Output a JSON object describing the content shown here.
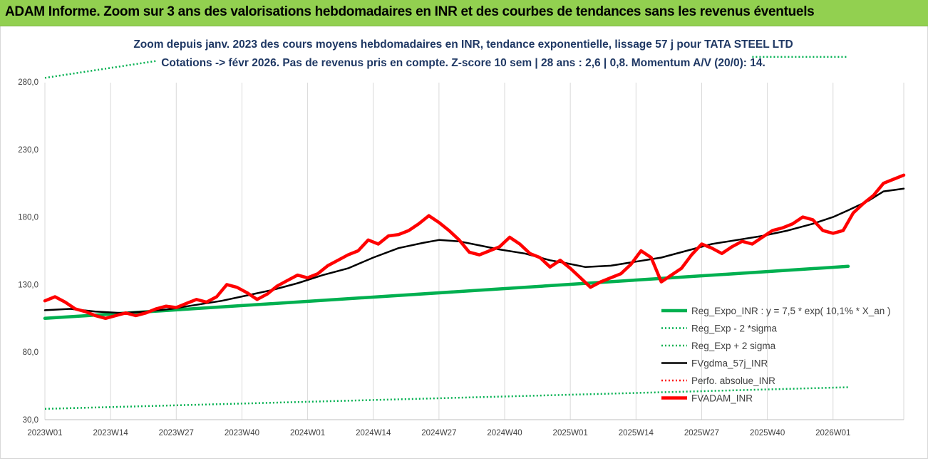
{
  "banner": {
    "title": "ADAM Informe. Zoom sur 3 ans des valorisations hebdomadaires en INR et des courbes de tendances sans les revenus éventuels"
  },
  "chart_data": {
    "type": "line",
    "title": "Zoom depuis janv. 2023 des cours moyens hebdomadaires en INR, tendance exponentielle, lissage 57 j pour TATA STEEL LTD",
    "subtitle": "Cotations -> févr 2026. Pas de revenus pris en compte. Z-score 10 sem | 28 ans : 2,6 | 0,8. Momentum A/V (20/0): 14.",
    "xlabel": "",
    "ylabel": "",
    "ylim": [
      30,
      290
    ],
    "yticks": [
      "30,0",
      "80,0",
      "130,0",
      "180,0",
      "230,0",
      "280,0"
    ],
    "ytick_values": [
      30,
      80,
      130,
      180,
      230,
      280
    ],
    "x_count": 160,
    "xtick_labels": [
      "2023W01",
      "2023W14",
      "2023W27",
      "2023W40",
      "2024W01",
      "2024W14",
      "2024W27",
      "2024W40",
      "2025W01",
      "2025W14",
      "2025W27",
      "2025W40",
      "2026W01"
    ],
    "xtick_index": [
      0,
      13,
      26,
      39,
      52,
      65,
      78,
      91,
      104,
      117,
      130,
      143,
      156
    ],
    "grid": "vertical",
    "legend_position": "right",
    "series": [
      {
        "name": "Reg_Expo_INR : y = 7,5 * exp( 10,1% *  X_an )",
        "style": "solid-thick",
        "color": "#00b050",
        "points": [
          [
            0,
            105.0
          ],
          [
            159,
            143.5
          ]
        ]
      },
      {
        "name": "Reg_Exp - 2 *sigma",
        "style": "dotted",
        "color": "#00b050",
        "points": [
          [
            0,
            38.0
          ],
          [
            159,
            54.0
          ]
        ]
      },
      {
        "name": "Reg_Exp + 2 sigma",
        "style": "dotted",
        "color": "#00b050",
        "points": [
          [
            0,
            283.0
          ],
          [
            22,
            295.5
          ]
        ],
        "points2": [
          [
            140,
            298.5
          ],
          [
            159,
            298.5
          ]
        ]
      },
      {
        "name": "FVgdma_57j_INR",
        "style": "solid",
        "color": "#000000",
        "points": [
          [
            0,
            111
          ],
          [
            5,
            112
          ],
          [
            10,
            110
          ],
          [
            15,
            109
          ],
          [
            20,
            110
          ],
          [
            25,
            112
          ],
          [
            30,
            115
          ],
          [
            35,
            118
          ],
          [
            40,
            122
          ],
          [
            45,
            126
          ],
          [
            50,
            131
          ],
          [
            55,
            137
          ],
          [
            60,
            142
          ],
          [
            65,
            150
          ],
          [
            70,
            157
          ],
          [
            75,
            161
          ],
          [
            78,
            163
          ],
          [
            82,
            162
          ],
          [
            86,
            159
          ],
          [
            90,
            156
          ],
          [
            95,
            153
          ],
          [
            100,
            148
          ],
          [
            103,
            146
          ],
          [
            107,
            143
          ],
          [
            112,
            144
          ],
          [
            117,
            147
          ],
          [
            122,
            150
          ],
          [
            127,
            155
          ],
          [
            132,
            160
          ],
          [
            137,
            163
          ],
          [
            142,
            166
          ],
          [
            147,
            170
          ],
          [
            152,
            175
          ],
          [
            156,
            180
          ],
          [
            159,
            185
          ],
          [
            163,
            192
          ],
          [
            166,
            199
          ],
          [
            170,
            201
          ]
        ]
      },
      {
        "name": "Perfo. absolue_INR",
        "style": "dotted",
        "color": "#ff0000",
        "points": []
      },
      {
        "name": "FVADAM_INR",
        "style": "solid-thick",
        "color": "#ff0000",
        "points": [
          [
            0,
            118
          ],
          [
            2,
            121
          ],
          [
            4,
            117
          ],
          [
            6,
            112
          ],
          [
            8,
            110
          ],
          [
            10,
            107
          ],
          [
            12,
            105
          ],
          [
            14,
            107
          ],
          [
            16,
            109
          ],
          [
            18,
            107
          ],
          [
            20,
            109
          ],
          [
            22,
            112
          ],
          [
            24,
            114
          ],
          [
            26,
            113
          ],
          [
            28,
            116
          ],
          [
            30,
            119
          ],
          [
            32,
            117
          ],
          [
            34,
            121
          ],
          [
            36,
            130
          ],
          [
            38,
            128
          ],
          [
            40,
            124
          ],
          [
            42,
            119
          ],
          [
            44,
            123
          ],
          [
            46,
            129
          ],
          [
            48,
            133
          ],
          [
            50,
            137
          ],
          [
            52,
            135
          ],
          [
            54,
            138
          ],
          [
            56,
            144
          ],
          [
            58,
            148
          ],
          [
            60,
            152
          ],
          [
            62,
            155
          ],
          [
            64,
            163
          ],
          [
            66,
            160
          ],
          [
            68,
            166
          ],
          [
            70,
            167
          ],
          [
            72,
            170
          ],
          [
            74,
            175
          ],
          [
            76,
            181
          ],
          [
            78,
            176
          ],
          [
            80,
            170
          ],
          [
            82,
            163
          ],
          [
            84,
            154
          ],
          [
            86,
            152
          ],
          [
            88,
            155
          ],
          [
            90,
            158
          ],
          [
            92,
            165
          ],
          [
            94,
            160
          ],
          [
            96,
            153
          ],
          [
            98,
            150
          ],
          [
            100,
            143
          ],
          [
            102,
            148
          ],
          [
            104,
            142
          ],
          [
            106,
            135
          ],
          [
            108,
            128
          ],
          [
            110,
            132
          ],
          [
            112,
            135
          ],
          [
            114,
            138
          ],
          [
            116,
            145
          ],
          [
            118,
            155
          ],
          [
            120,
            150
          ],
          [
            122,
            132
          ],
          [
            124,
            137
          ],
          [
            126,
            142
          ],
          [
            128,
            152
          ],
          [
            130,
            160
          ],
          [
            132,
            157
          ],
          [
            134,
            153
          ],
          [
            136,
            158
          ],
          [
            138,
            162
          ],
          [
            140,
            160
          ],
          [
            142,
            165
          ],
          [
            144,
            170
          ],
          [
            146,
            172
          ],
          [
            148,
            175
          ],
          [
            150,
            180
          ],
          [
            152,
            178
          ],
          [
            154,
            170
          ],
          [
            156,
            168
          ],
          [
            158,
            170
          ],
          [
            160,
            183
          ],
          [
            162,
            190
          ],
          [
            164,
            196
          ],
          [
            166,
            205
          ],
          [
            168,
            208
          ],
          [
            170,
            211
          ]
        ]
      }
    ]
  }
}
